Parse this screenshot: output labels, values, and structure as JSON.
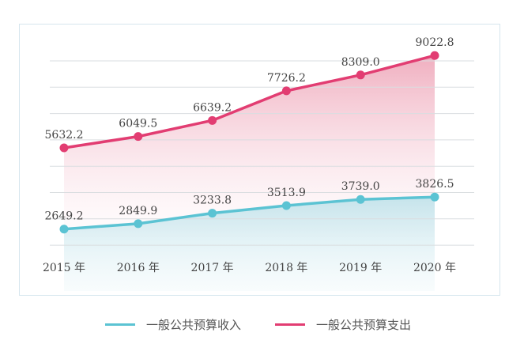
{
  "chart_data": {
    "type": "area",
    "categories": [
      "2015 年",
      "2016 年",
      "2017 年",
      "2018 年",
      "2019 年",
      "2020 年"
    ],
    "series": [
      {
        "name": "一般公共预算收入",
        "values": [
          2649.2,
          2849.9,
          3233.8,
          3513.9,
          3739.0,
          3826.5
        ],
        "labels": [
          "2649.2",
          "2849.9",
          "3233.8",
          "3513.9",
          "3739.0",
          "3826.5"
        ],
        "color": "#5bc3d3"
      },
      {
        "name": "一般公共预算支出",
        "values": [
          5632.2,
          6049.5,
          6639.2,
          7726.2,
          8309.0,
          9022.8
        ],
        "labels": [
          "5632.2",
          "6049.5",
          "6639.2",
          "7726.2",
          "8309.0",
          "9022.8"
        ],
        "color": "#e23d72"
      }
    ],
    "title": "",
    "xlabel": "",
    "ylabel": "",
    "ylim": [
      900,
      9900
    ],
    "grid": true,
    "legend": "bottom"
  }
}
